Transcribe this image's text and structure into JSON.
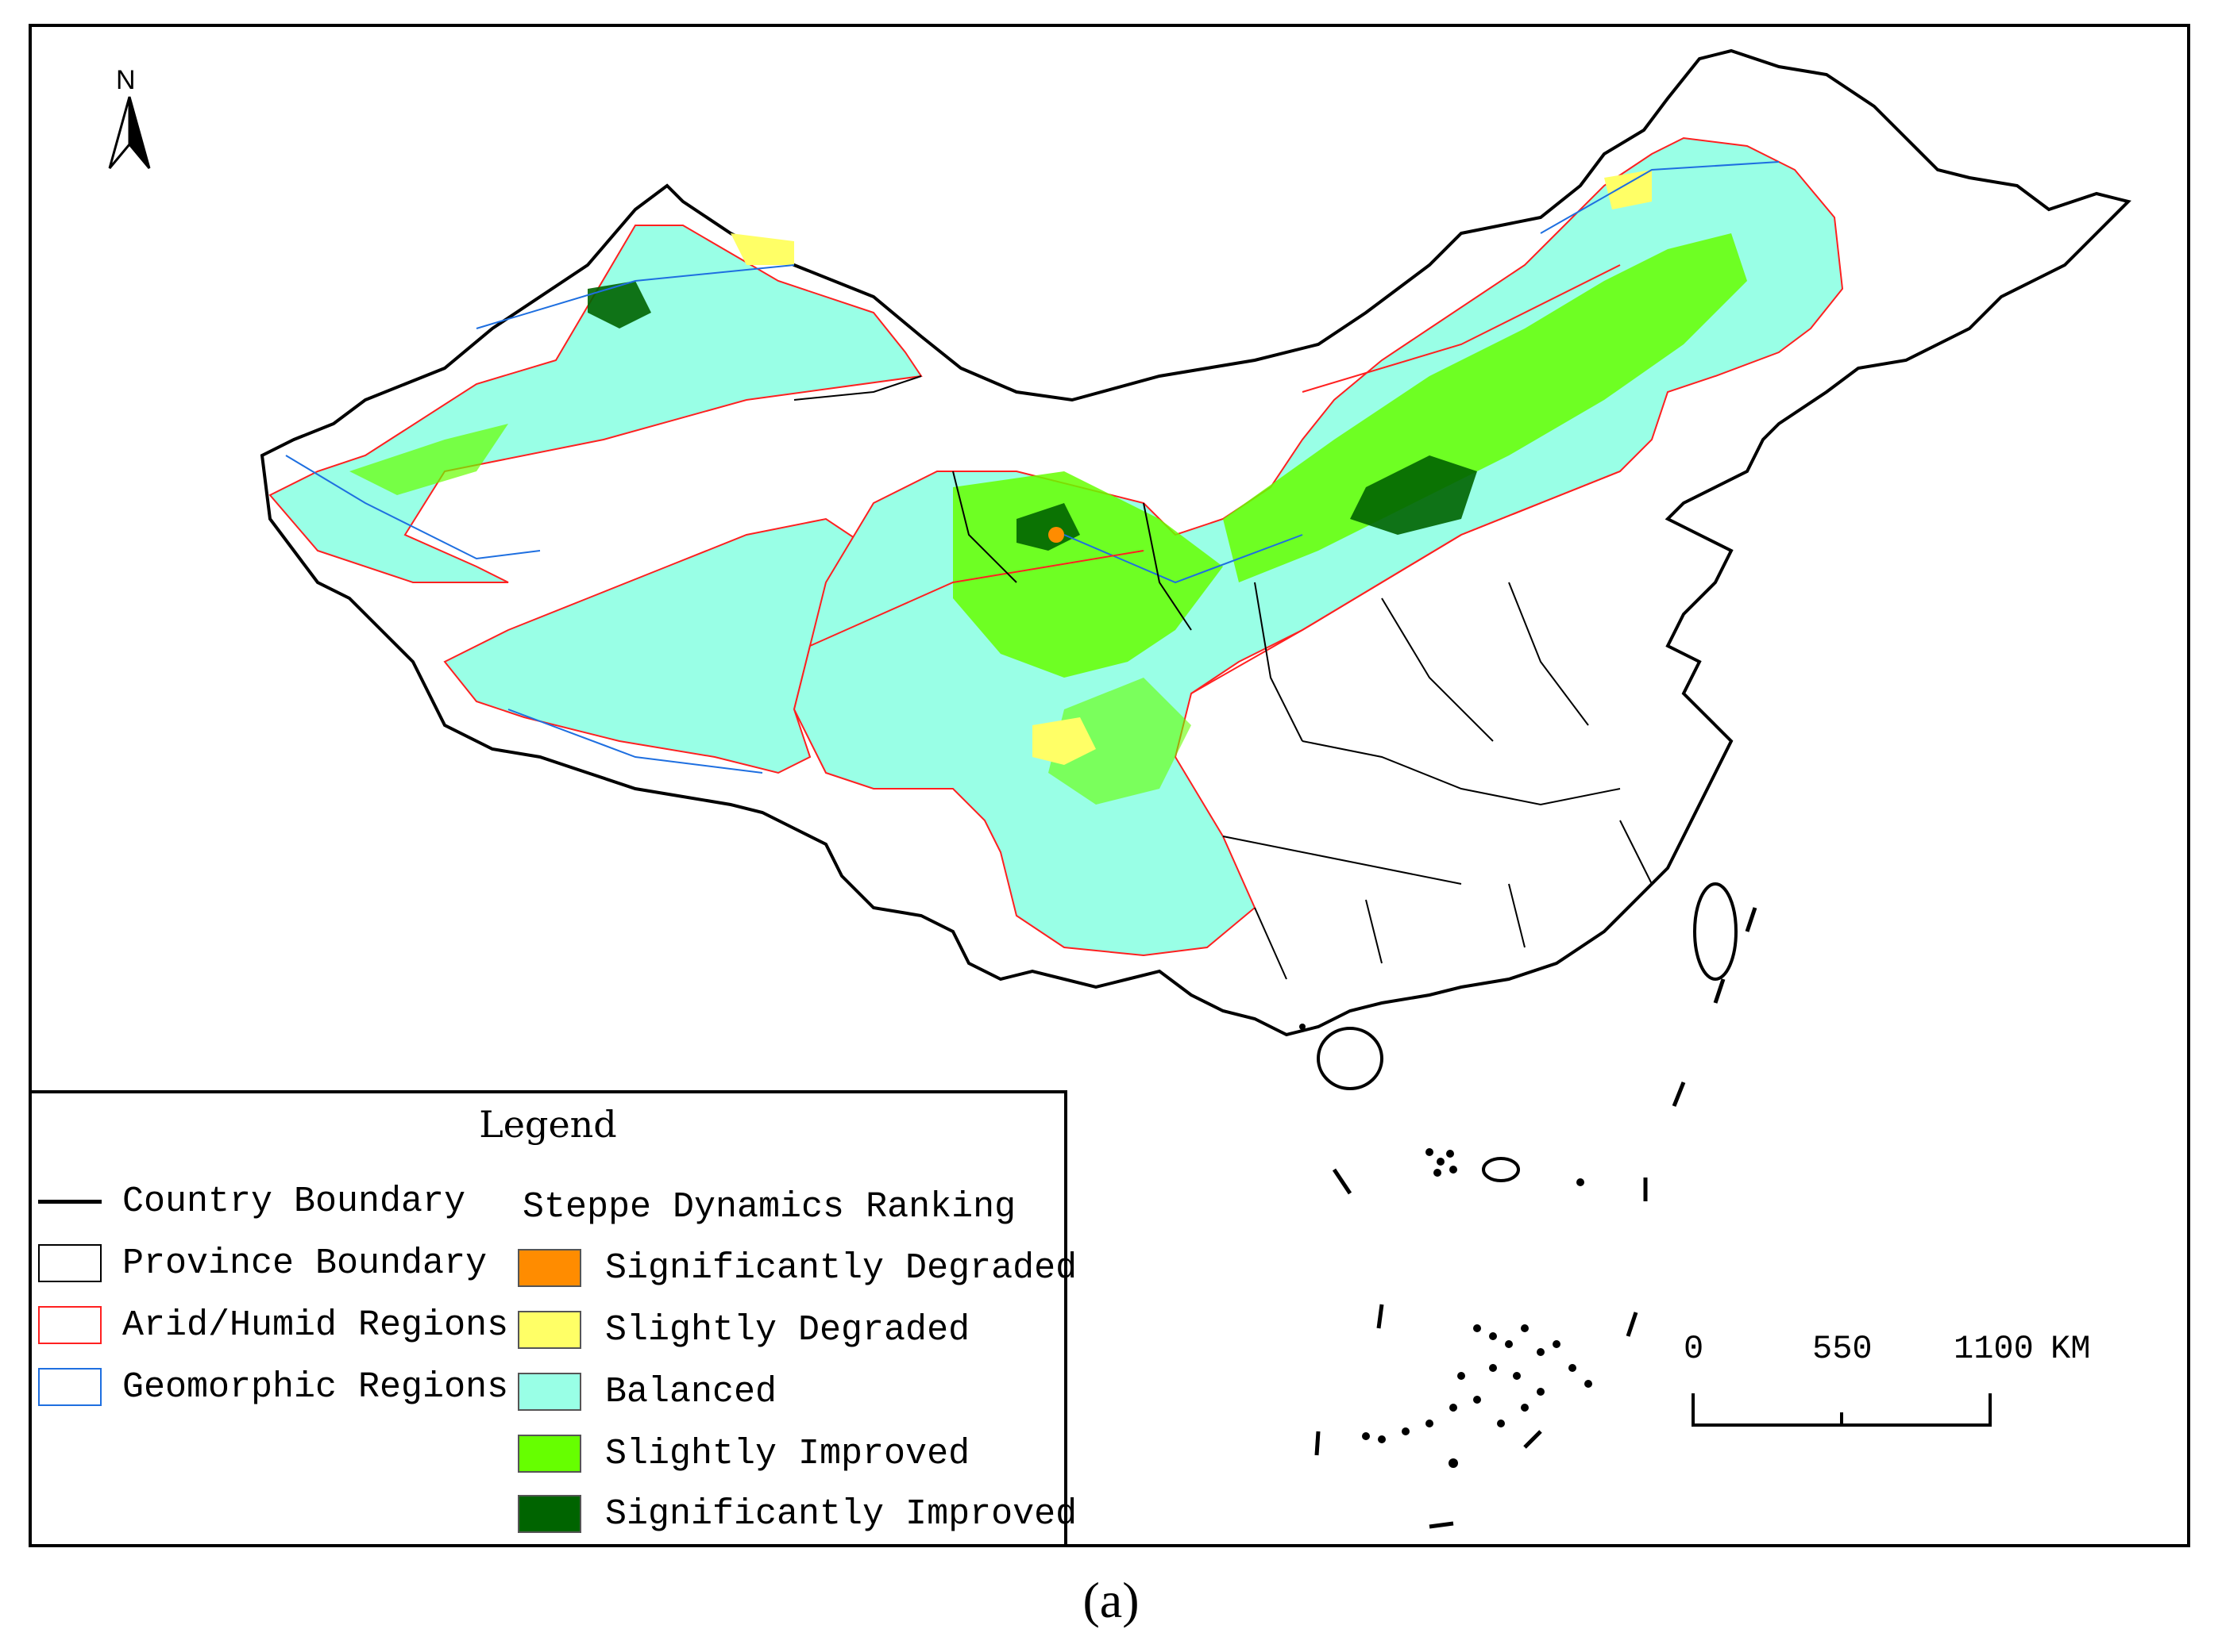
{
  "map": {
    "north_label": "N",
    "colors": {
      "country_boundary": "#000000",
      "province_boundary": "#000000",
      "arid_humid": "#ff2020",
      "geomorphic": "#1e6fe0",
      "significantly_degraded": "#ff8c00",
      "slightly_degraded": "#ffff66",
      "balanced": "#99ffe6",
      "slightly_improved": "#66ff00",
      "significantly_improved": "#006400"
    }
  },
  "legend": {
    "title": "Legend",
    "boundaries": [
      {
        "label": "Country Boundary",
        "symbol": "line",
        "color": "#000000"
      },
      {
        "label": "Province Boundary",
        "symbol": "box",
        "color": "#000000"
      },
      {
        "label": "Arid/Humid Regions",
        "symbol": "box",
        "color": "#ff2020"
      },
      {
        "label": "Geomorphic Regions",
        "symbol": "box",
        "color": "#1e6fe0"
      }
    ],
    "ranking_title": "Steppe Dynamics Ranking",
    "ranking": [
      {
        "label": "Significantly Degraded",
        "color": "#ff8c00"
      },
      {
        "label": "Slightly Degraded",
        "color": "#ffff66"
      },
      {
        "label": "Balanced",
        "color": "#99ffe6"
      },
      {
        "label": "Slightly Improved",
        "color": "#66ff00"
      },
      {
        "label": "Significantly Improved",
        "color": "#006400"
      }
    ]
  },
  "scale_bar": {
    "ticks": [
      "0",
      "550",
      "1100"
    ],
    "unit": "KM"
  },
  "caption": "(a)"
}
